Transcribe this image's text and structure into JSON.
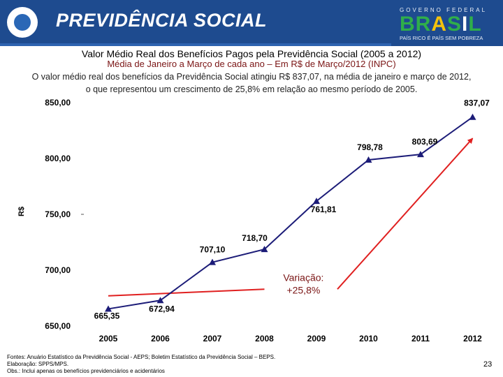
{
  "header": {
    "brand": "PREVIDÊNCIA SOCIAL",
    "gov_top": "GOVERNO FEDERAL",
    "brasil_b": "BR",
    "brasil_a": "A",
    "brasil_s": "S",
    "brasil_i": "I",
    "brasil_l": "L",
    "gov_motto": "PAÍS RICO É PAÍS SEM POBREZA",
    "colors": {
      "blue": "#1e4b8f",
      "green": "#2fae4a",
      "yellow": "#f4c20d"
    }
  },
  "title": "Valor Médio Real dos Benefícios Pagos pela Previdência Social (2005 a 2012)",
  "subtitle": "Média de Janeiro a Março de cada ano – Em R$ de Março/2012 (INPC)",
  "description": {
    "line1": "O valor médio real dos benefícios da Previdência Social atingiu R$ 837,07, na média de janeiro e março de 2012,",
    "line2": "o que representou um crescimento de 25,8% em relação ao mesmo período de 2005."
  },
  "chart_data": {
    "type": "line",
    "title": "Valor Médio Real dos Benefícios Pagos pela Previdência Social (2005 a 2012)",
    "ylabel": "R$",
    "xlabel": "",
    "categories": [
      "2005",
      "2006",
      "2007",
      "2008",
      "2009",
      "2010",
      "2011",
      "2012"
    ],
    "series": [
      {
        "name": "Valor médio real",
        "values": [
          665.35,
          672.94,
          707.1,
          718.7,
          761.81,
          798.78,
          803.69,
          837.07
        ],
        "labels": [
          "665,35",
          "672,94",
          "707,10",
          "718,70",
          "761,81",
          "798,78",
          "803,69",
          "837,07"
        ],
        "color": "#1c1c78"
      }
    ],
    "yticks": [
      650,
      700,
      750,
      800,
      850
    ],
    "ytick_labels": [
      "650,00",
      "700,00",
      "750,00",
      "800,00",
      "850,00"
    ],
    "ylim": [
      650,
      850
    ],
    "annotation": {
      "line1": "Variação:",
      "line2": "+25,8%",
      "arrow_color": "#e02020",
      "segments": [
        {
          "from": {
            "x": "2005",
            "y": 677
          },
          "to": {
            "x": "2008",
            "y": 683
          }
        },
        {
          "from": {
            "x": "2009",
            "y": 683
          },
          "to": {
            "x": "2012",
            "y": 818
          }
        }
      ]
    },
    "grid": false,
    "legend": "none"
  },
  "footnotes": {
    "sources": "Fontes: Anuário Estatístico da Previdência Social - AEPS; Boletim Estatístico da Previdência Social – BEPS.",
    "elaboration": "Elaboração: SPPS/MPS.",
    "obs": "Obs.: Inclui apenas os benefícios previdenciários e acidentários"
  },
  "page_number": "23"
}
